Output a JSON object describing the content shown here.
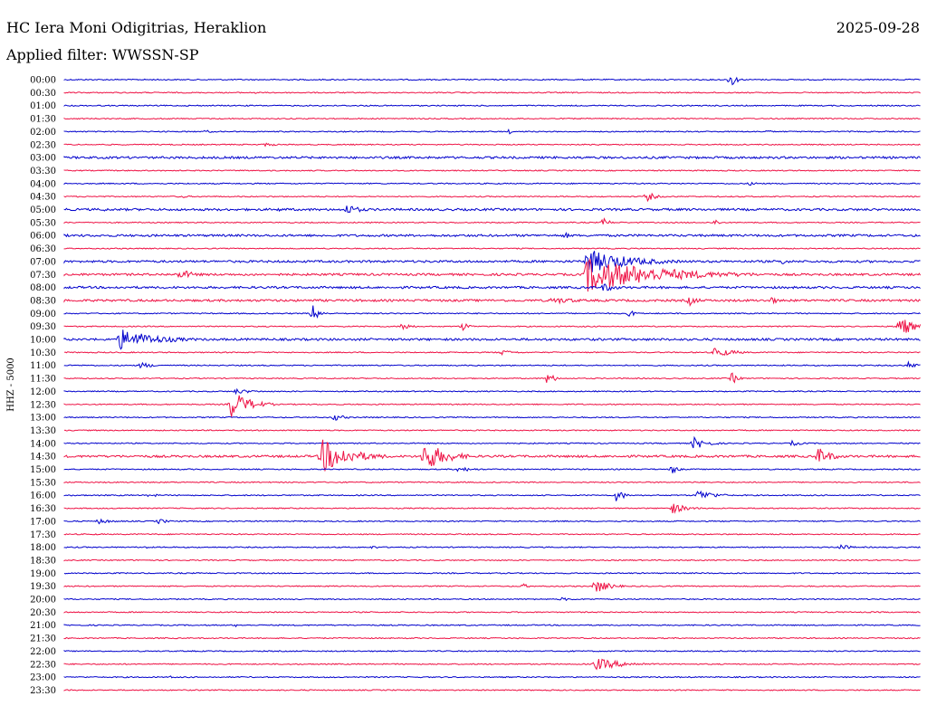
{
  "header": {
    "station": "HC Iera Moni Odigitrias, Heraklion",
    "date": "2025-09-28",
    "filter": "Applied filter: WWSSN-SP"
  },
  "chart_data": {
    "type": "line",
    "ylabel": "HHZ - 5000",
    "row_labels": [
      "00:00",
      "00:30",
      "01:00",
      "01:30",
      "02:00",
      "02:30",
      "03:00",
      "03:30",
      "04:00",
      "04:30",
      "05:00",
      "05:30",
      "06:00",
      "06:30",
      "07:00",
      "07:30",
      "08:00",
      "08:30",
      "09:00",
      "09:30",
      "10:00",
      "10:30",
      "11:00",
      "11:30",
      "12:00",
      "12:30",
      "13:00",
      "13:30",
      "14:00",
      "14:30",
      "15:00",
      "15:30",
      "16:00",
      "16:30",
      "17:00",
      "17:30",
      "18:00",
      "18:30",
      "19:00",
      "19:30",
      "20:00",
      "20:30",
      "21:00",
      "21:30",
      "22:00",
      "22:30",
      "23:00",
      "23:30"
    ],
    "colors": [
      "#0000cc",
      "#ee1144"
    ],
    "noise_level": [
      1,
      1,
      1,
      1,
      1,
      1,
      2,
      1,
      1,
      1,
      2,
      1,
      2,
      1,
      2,
      2,
      2,
      2,
      1,
      1,
      2,
      1,
      1,
      1,
      1,
      1,
      1,
      1,
      1,
      2,
      1,
      1,
      1,
      1,
      1,
      1,
      1,
      1,
      1,
      1,
      1,
      1,
      1,
      1,
      1,
      1,
      1,
      1
    ],
    "events": [
      {
        "row": 0,
        "at": 0.778,
        "amp": 10,
        "dur": 0.015
      },
      {
        "row": 1,
        "at": 0.225,
        "amp": 2,
        "dur": 0.005
      },
      {
        "row": 4,
        "at": 0.165,
        "amp": 2,
        "dur": 0.02
      },
      {
        "row": 4,
        "at": 0.52,
        "amp": 3,
        "dur": 0.005
      },
      {
        "row": 4,
        "at": 0.82,
        "amp": 2,
        "dur": 0.02
      },
      {
        "row": 5,
        "at": 0.235,
        "amp": 2,
        "dur": 0.04
      },
      {
        "row": 8,
        "at": 0.8,
        "amp": 2,
        "dur": 0.04
      },
      {
        "row": 9,
        "at": 0.135,
        "amp": 2,
        "dur": 0.03
      },
      {
        "row": 9,
        "at": 0.68,
        "amp": 6,
        "dur": 0.025
      },
      {
        "row": 10,
        "at": 0.045,
        "amp": 2,
        "dur": 0.03
      },
      {
        "row": 10,
        "at": 0.25,
        "amp": 2,
        "dur": 0.07
      },
      {
        "row": 10,
        "at": 0.33,
        "amp": 6,
        "dur": 0.04
      },
      {
        "row": 11,
        "at": 0.63,
        "amp": 6,
        "dur": 0.015
      },
      {
        "row": 11,
        "at": 0.76,
        "amp": 5,
        "dur": 0.01
      },
      {
        "row": 12,
        "at": 0.585,
        "amp": 4,
        "dur": 0.015
      },
      {
        "row": 14,
        "at": 0.61,
        "amp": 14,
        "dur": 0.12
      },
      {
        "row": 14,
        "at": 0.84,
        "amp": 6,
        "dur": 0.01
      },
      {
        "row": 15,
        "at": 0.135,
        "amp": 6,
        "dur": 0.04
      },
      {
        "row": 15,
        "at": 0.61,
        "amp": 20,
        "dur": 0.2
      },
      {
        "row": 16,
        "at": 0.63,
        "amp": 5,
        "dur": 0.04
      },
      {
        "row": 17,
        "at": 0.57,
        "amp": 4,
        "dur": 0.08
      },
      {
        "row": 17,
        "at": 0.73,
        "amp": 6,
        "dur": 0.025
      },
      {
        "row": 17,
        "at": 0.825,
        "amp": 5,
        "dur": 0.02
      },
      {
        "row": 18,
        "at": 0.29,
        "amp": 10,
        "dur": 0.02
      },
      {
        "row": 18,
        "at": 0.66,
        "amp": 4,
        "dur": 0.02
      },
      {
        "row": 19,
        "at": 0.395,
        "amp": 6,
        "dur": 0.02
      },
      {
        "row": 19,
        "at": 0.465,
        "amp": 5,
        "dur": 0.02
      },
      {
        "row": 19,
        "at": 0.975,
        "amp": 12,
        "dur": 0.04
      },
      {
        "row": 20,
        "at": 0.065,
        "amp": 12,
        "dur": 0.1
      },
      {
        "row": 21,
        "at": 0.51,
        "amp": 3,
        "dur": 0.04
      },
      {
        "row": 21,
        "at": 0.76,
        "amp": 6,
        "dur": 0.05
      },
      {
        "row": 22,
        "at": 0.09,
        "amp": 4,
        "dur": 0.03
      },
      {
        "row": 22,
        "at": 0.985,
        "amp": 4,
        "dur": 0.03
      },
      {
        "row": 23,
        "at": 0.565,
        "amp": 9,
        "dur": 0.015
      },
      {
        "row": 23,
        "at": 0.78,
        "amp": 7,
        "dur": 0.015
      },
      {
        "row": 24,
        "at": 0.2,
        "amp": 3,
        "dur": 0.05
      },
      {
        "row": 25,
        "at": 0.195,
        "amp": 16,
        "dur": 0.05
      },
      {
        "row": 26,
        "at": 0.315,
        "amp": 4,
        "dur": 0.03
      },
      {
        "row": 28,
        "at": 0.735,
        "amp": 7,
        "dur": 0.04
      },
      {
        "row": 28,
        "at": 0.85,
        "amp": 3,
        "dur": 0.03
      },
      {
        "row": 29,
        "at": 0.3,
        "amp": 20,
        "dur": 0.08
      },
      {
        "row": 29,
        "at": 0.42,
        "amp": 18,
        "dur": 0.06
      },
      {
        "row": 29,
        "at": 0.88,
        "amp": 10,
        "dur": 0.04
      },
      {
        "row": 30,
        "at": 0.71,
        "amp": 6,
        "dur": 0.015
      },
      {
        "row": 30,
        "at": 0.46,
        "amp": 3,
        "dur": 0.05
      },
      {
        "row": 32,
        "at": 0.1,
        "amp": 3,
        "dur": 0.02
      },
      {
        "row": 32,
        "at": 0.645,
        "amp": 8,
        "dur": 0.02
      },
      {
        "row": 32,
        "at": 0.74,
        "amp": 6,
        "dur": 0.05
      },
      {
        "row": 33,
        "at": 0.71,
        "amp": 6,
        "dur": 0.04
      },
      {
        "row": 34,
        "at": 0.04,
        "amp": 3,
        "dur": 0.04
      },
      {
        "row": 34,
        "at": 0.11,
        "amp": 3,
        "dur": 0.03
      },
      {
        "row": 36,
        "at": 0.095,
        "amp": 2,
        "dur": 0.015
      },
      {
        "row": 36,
        "at": 0.36,
        "amp": 2,
        "dur": 0.02
      },
      {
        "row": 36,
        "at": 0.905,
        "amp": 4,
        "dur": 0.03
      },
      {
        "row": 39,
        "at": 0.535,
        "amp": 3,
        "dur": 0.02
      },
      {
        "row": 39,
        "at": 0.62,
        "amp": 8,
        "dur": 0.04
      },
      {
        "row": 40,
        "at": 0.58,
        "amp": 2,
        "dur": 0.04
      },
      {
        "row": 41,
        "at": 0.545,
        "amp": 3,
        "dur": 0.005
      },
      {
        "row": 42,
        "at": 0.2,
        "amp": 2,
        "dur": 0.005
      },
      {
        "row": 45,
        "at": 0.62,
        "amp": 7,
        "dur": 0.08
      },
      {
        "row": 46,
        "at": 0.125,
        "amp": 2,
        "dur": 0.005
      }
    ]
  }
}
